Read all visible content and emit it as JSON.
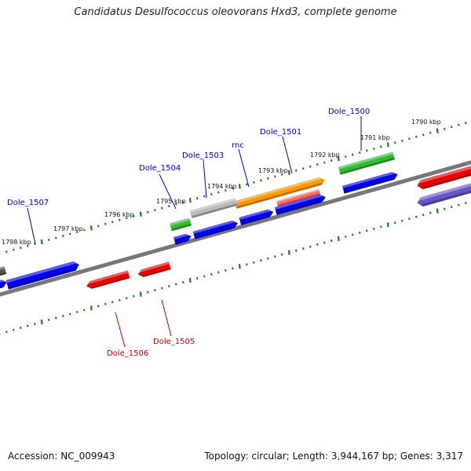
{
  "title": "Candidatus Desulfococcus oleovorans Hxd3, complete genome",
  "footer": {
    "accession": "Accession: NC_009943",
    "summary": "Topology: circular; Length: 3,944,167 bp; Genes: 3,317"
  },
  "colors": {
    "forward_gene": "#0000ee",
    "reverse_gene": "#ee0000",
    "rna_green": "#33bb33",
    "rna_orange": "#ff9900",
    "pseudo_gray": "#bbbbbb",
    "reverse_purple": "#6655cc",
    "backbone": "#777777",
    "tick": "#1a7a1a",
    "forward_label": "#0000cc",
    "reverse_label": "#cc0000"
  },
  "coordinate_labels": [
    "1790 kbp",
    "1791 kbp",
    "1792 kbp",
    "1793 kbp",
    "1794 kbp",
    "1795 kbp",
    "1796 kbp",
    "1797 kbp",
    "1798 kbp"
  ],
  "gene_labels_forward": [
    "Dole_1500",
    "Dole_1501",
    "rnc",
    "Dole_1503",
    "Dole_1504",
    "Dole_1507"
  ],
  "gene_labels_reverse": [
    "Dole_1505",
    "Dole_1506"
  ]
}
